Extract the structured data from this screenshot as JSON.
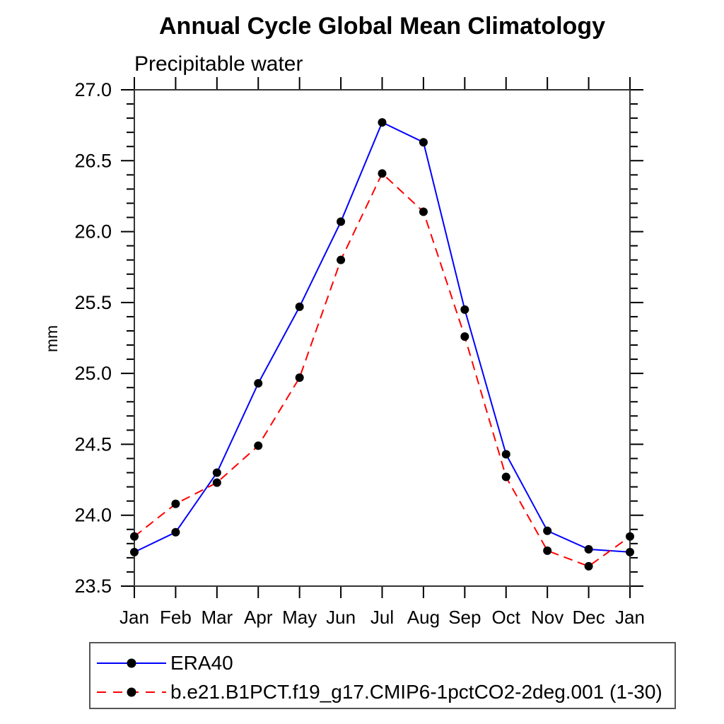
{
  "title": "Annual Cycle Global Mean Climatology",
  "subtitle": "Precipitable water",
  "chart_data": {
    "type": "line",
    "title": "Annual Cycle Global Mean Climatology",
    "subtitle": "Precipitable water",
    "xlabel": "",
    "ylabel": "mm",
    "x_tick_labels": [
      "Jan",
      "Feb",
      "Mar",
      "Apr",
      "May",
      "Jun",
      "Jul",
      "Aug",
      "Sep",
      "Oct",
      "Nov",
      "Dec",
      "Jan"
    ],
    "y_tick_labels": [
      "23.5",
      "24.0",
      "24.5",
      "25.0",
      "25.5",
      "26.0",
      "26.5",
      "27.0"
    ],
    "ylim": [
      23.5,
      27.0
    ],
    "y_major_step": 0.5,
    "y_minor_step": 0.1,
    "grid": false,
    "legend_position": "bottom-left-box",
    "marker_color": "#000000",
    "axis_color": "#333333",
    "series": [
      {
        "name": "ERA40",
        "color": "#0000ff",
        "line_style": "solid",
        "marker": "filled-circle",
        "values": [
          23.74,
          23.88,
          24.3,
          24.93,
          25.47,
          26.07,
          26.77,
          26.63,
          25.45,
          24.43,
          23.89,
          23.76,
          23.74
        ]
      },
      {
        "name": "b.e21.B1PCT.f19_g17.CMIP6-1pctCO2-2deg.001 (1-30)",
        "color": "#ff0000",
        "line_style": "dashed",
        "marker": "filled-circle",
        "values": [
          23.85,
          24.08,
          24.23,
          24.49,
          24.97,
          25.8,
          26.41,
          26.14,
          25.26,
          24.27,
          23.75,
          23.64,
          23.85
        ]
      }
    ]
  }
}
